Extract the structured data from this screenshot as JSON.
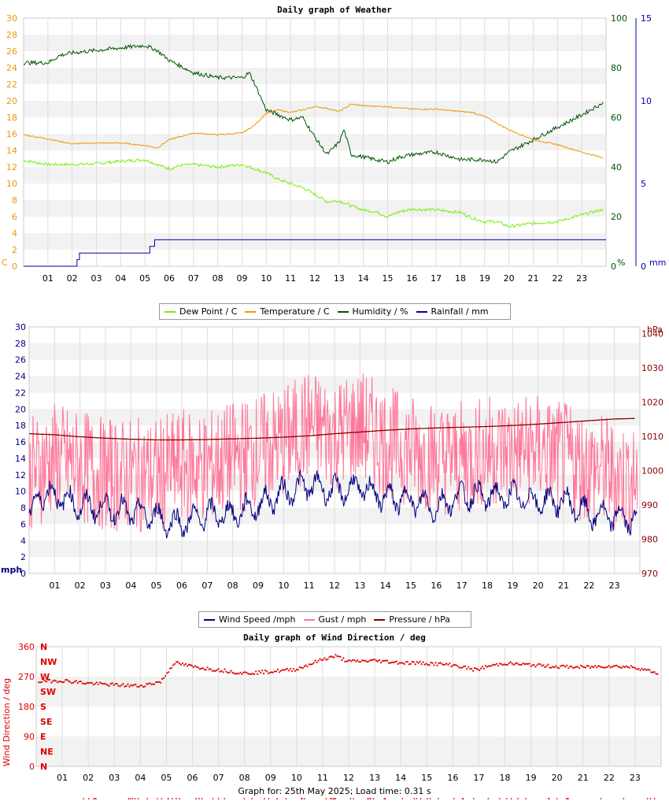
{
  "colors": {
    "dewpoint": "#77ee11",
    "temperature": "#ee9900",
    "humidity": "#005500",
    "rainfall": "#0000aa",
    "wind": "#000080",
    "gust": "#ff7799",
    "pressure": "#880000",
    "direction": "#dd0000",
    "gridband": "#f2f2f2",
    "gridline": "#dddddd"
  },
  "footer": "Graph for: 25th May 2025; Load time: 0.31 s",
  "hours": [
    "01",
    "02",
    "03",
    "04",
    "05",
    "06",
    "07",
    "08",
    "09",
    "10",
    "11",
    "12",
    "13",
    "14",
    "15",
    "16",
    "17",
    "18",
    "19",
    "20",
    "21",
    "22",
    "23"
  ],
  "chart_data": [
    {
      "type": "line",
      "title": "Daily graph of Weather",
      "xlim": [
        0,
        24
      ],
      "left_axis": {
        "label": "C",
        "ticks": [
          "0",
          "2",
          "4",
          "6",
          "8",
          "10",
          "12",
          "14",
          "16",
          "18",
          "20",
          "22",
          "24",
          "26",
          "28",
          "30"
        ],
        "ylim": [
          0,
          30
        ]
      },
      "right_axis_1": {
        "label": "%",
        "ticks": [
          "0",
          "20",
          "40",
          "60",
          "80",
          "100"
        ],
        "ylim": [
          0,
          100
        ]
      },
      "right_axis_2": {
        "label": "mm",
        "ticks": [
          "0",
          "5",
          "10",
          "15"
        ],
        "ylim": [
          0,
          15
        ]
      },
      "legend": [
        "Dew Point / C",
        "Temperature / C",
        "Humidity / %",
        "Rainfall / mm"
      ],
      "series": [
        {
          "name": "Dew Point / C",
          "axis": "left",
          "x": [
            0,
            1,
            2,
            3,
            4,
            5,
            5.5,
            6,
            6.5,
            7,
            8,
            9,
            9.5,
            10,
            10.5,
            11,
            11.5,
            12,
            12.5,
            13,
            13.5,
            14,
            14.5,
            15,
            15.5,
            16,
            17,
            18,
            18.5,
            19,
            19.5,
            20,
            21,
            22,
            23,
            23.9
          ],
          "y": [
            12.8,
            12.3,
            12.3,
            12.4,
            12.7,
            12.9,
            12.3,
            11.8,
            12.2,
            12.3,
            12.0,
            12.3,
            11.8,
            11.3,
            10.5,
            10.0,
            9.5,
            8.7,
            7.8,
            7.9,
            7.3,
            6.8,
            6.6,
            6.0,
            6.6,
            6.9,
            6.8,
            6.5,
            5.8,
            5.4,
            5.4,
            4.8,
            5.2,
            5.4,
            6.2,
            6.9
          ]
        },
        {
          "name": "Temperature / C",
          "axis": "left",
          "x": [
            0,
            1,
            1.5,
            2,
            3,
            4,
            5,
            5.5,
            6,
            7,
            8,
            9,
            9.5,
            10,
            10.5,
            11,
            11.5,
            12,
            12.5,
            13,
            13.5,
            14,
            15,
            16,
            17,
            18,
            18.5,
            19,
            19.5,
            20,
            21,
            22,
            23,
            23.9
          ],
          "y": [
            15.9,
            15.4,
            15.1,
            14.8,
            14.9,
            14.9,
            14.6,
            14.3,
            15.3,
            16.1,
            15.9,
            16.1,
            17.0,
            18.5,
            18.9,
            18.6,
            18.9,
            19.3,
            19.1,
            18.7,
            19.6,
            19.4,
            19.3,
            19.0,
            19.0,
            18.7,
            18.6,
            18.1,
            17.3,
            16.5,
            15.3,
            14.7,
            13.8,
            13.1
          ]
        },
        {
          "name": "Humidity / %",
          "axis": "right1",
          "x": [
            0,
            1,
            1.5,
            2,
            3,
            4,
            5,
            5.5,
            6,
            7,
            8,
            9,
            9.3,
            9.5,
            10,
            10.5,
            11,
            11.5,
            12,
            12.5,
            13,
            13.2,
            13.5,
            14,
            14.5,
            15,
            15.5,
            16,
            17,
            18,
            19,
            19.5,
            20,
            21,
            22,
            23,
            23.9
          ],
          "y": [
            82,
            82,
            85,
            86,
            87,
            88,
            89,
            87,
            83,
            78,
            76,
            76,
            78,
            74,
            63,
            61,
            59,
            60,
            52,
            45,
            50,
            55,
            45,
            44,
            43,
            42,
            44,
            45,
            46,
            43,
            43,
            42,
            46,
            51,
            56,
            61,
            66
          ]
        },
        {
          "name": "Rainfall / mm",
          "axis": "right2",
          "x": [
            0,
            0.5,
            0.7,
            1.6,
            2.2,
            2.3,
            3,
            4,
            5,
            5.2,
            5.4,
            6,
            24
          ],
          "y": [
            0,
            0,
            0,
            0,
            0.4,
            0.8,
            0.8,
            0.8,
            0.8,
            1.2,
            1.6,
            1.6,
            1.6
          ]
        }
      ]
    },
    {
      "type": "line",
      "title": "",
      "xlim": [
        0,
        24
      ],
      "left_axis": {
        "label": "mph",
        "ticks": [
          "0",
          "2",
          "4",
          "6",
          "8",
          "10",
          "12",
          "14",
          "16",
          "18",
          "20",
          "22",
          "24",
          "26",
          "28",
          "30"
        ],
        "ylim": [
          0,
          30
        ]
      },
      "right_axis": {
        "label": "hPa",
        "ticks": [
          "970",
          "980",
          "990",
          "1000",
          "1010",
          "1020",
          "1030",
          "1040"
        ],
        "ylim": [
          970,
          1042
        ]
      },
      "legend": [
        "Wind Speed /mph",
        "Gust / mph",
        "Pressure / hPa"
      ],
      "series": [
        {
          "name": "Wind Speed /mph",
          "axis": "left",
          "baseline": [
            [
              0,
              6.5
            ],
            [
              0.4,
              9.8
            ],
            [
              1,
              9.5
            ],
            [
              2,
              8.2
            ],
            [
              3,
              8.0
            ],
            [
              4,
              7.5
            ],
            [
              5,
              6.9
            ],
            [
              5.5,
              6.2
            ],
            [
              6,
              6.1
            ],
            [
              7,
              7.2
            ],
            [
              8,
              7.2
            ],
            [
              9,
              8.3
            ],
            [
              10,
              9.8
            ],
            [
              11,
              10.8
            ],
            [
              12,
              10.0
            ],
            [
              13,
              10.5
            ],
            [
              14,
              9.2
            ],
            [
              15,
              9.0
            ],
            [
              16,
              8.0
            ],
            [
              17,
              9.6
            ],
            [
              18,
              9.4
            ],
            [
              19,
              9.4
            ],
            [
              20,
              8.8
            ],
            [
              21,
              8.8
            ],
            [
              22,
              7.2
            ],
            [
              23,
              6.9
            ],
            [
              23.9,
              6.5
            ]
          ]
        },
        {
          "name": "Gust / mph",
          "axis": "left",
          "baseline": [
            [
              0,
              12
            ],
            [
              1,
              14
            ],
            [
              2,
              13
            ],
            [
              3,
              12
            ],
            [
              4,
              12
            ],
            [
              5,
              12
            ],
            [
              6,
              13
            ],
            [
              7,
              13
            ],
            [
              8,
              14
            ],
            [
              9,
              15
            ],
            [
              10,
              16
            ],
            [
              11,
              18
            ],
            [
              12,
              17
            ],
            [
              13,
              18
            ],
            [
              14,
              16
            ],
            [
              15,
              15
            ],
            [
              16,
              14
            ],
            [
              17,
              14
            ],
            [
              18,
              15
            ],
            [
              19,
              15
            ],
            [
              20,
              15
            ],
            [
              21,
              14
            ],
            [
              22,
              13
            ],
            [
              23,
              12
            ],
            [
              23.9,
              11
            ]
          ]
        },
        {
          "name": "Pressure / hPa",
          "axis": "right",
          "x": [
            0,
            1,
            2,
            3,
            4,
            5,
            6,
            7,
            8,
            9,
            10,
            11,
            12,
            13,
            14,
            15,
            16,
            17,
            18,
            19,
            20,
            21,
            22,
            23,
            23.9
          ],
          "y": [
            1010.8,
            1010.5,
            1009.9,
            1009.5,
            1009.2,
            1009.0,
            1009.0,
            1009.1,
            1009.3,
            1009.5,
            1009.8,
            1010.2,
            1010.8,
            1011.3,
            1011.8,
            1012.2,
            1012.5,
            1012.7,
            1012.9,
            1013.2,
            1013.6,
            1014.1,
            1014.6,
            1015.1,
            1015.3
          ]
        }
      ]
    },
    {
      "type": "scatter",
      "title": "Daily graph of Wind Direction / deg",
      "xlim": [
        0,
        24
      ],
      "ylabel": "Wind Direction / deg",
      "ylim": [
        0,
        360
      ],
      "left_ticks": [
        "0",
        "90",
        "180",
        "270",
        "360"
      ],
      "compass": [
        {
          "v": 0,
          "t": "N"
        },
        {
          "v": 45,
          "t": "NE"
        },
        {
          "v": 90,
          "t": "E"
        },
        {
          "v": 135,
          "t": "SE"
        },
        {
          "v": 180,
          "t": "S"
        },
        {
          "v": 225,
          "t": "SW"
        },
        {
          "v": 270,
          "t": "W"
        },
        {
          "v": 315,
          "t": "NW"
        },
        {
          "v": 360,
          "t": "N"
        }
      ],
      "series": [
        {
          "name": "Wind Direction",
          "baseline": [
            [
              0,
              255
            ],
            [
              1,
              258
            ],
            [
              2,
              250
            ],
            [
              3,
              245
            ],
            [
              4,
              242
            ],
            [
              4.8,
              255
            ],
            [
              5.3,
              312
            ],
            [
              6,
              300
            ],
            [
              7,
              290
            ],
            [
              8,
              280
            ],
            [
              9,
              285
            ],
            [
              10,
              292
            ],
            [
              11,
              322
            ],
            [
              11.5,
              332
            ],
            [
              12,
              315
            ],
            [
              13,
              318
            ],
            [
              14,
              312
            ],
            [
              15,
              310
            ],
            [
              16,
              305
            ],
            [
              16.9,
              290
            ],
            [
              17.3,
              300
            ],
            [
              18,
              310
            ],
            [
              19,
              305
            ],
            [
              20,
              300
            ],
            [
              21,
              298
            ],
            [
              22,
              302
            ],
            [
              23,
              298
            ],
            [
              23.9,
              280
            ]
          ]
        }
      ]
    }
  ]
}
